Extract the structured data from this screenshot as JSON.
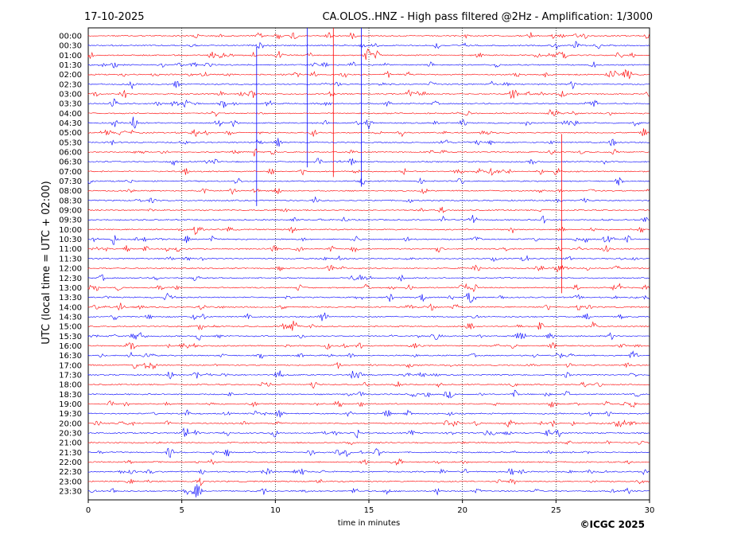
{
  "header": {
    "date": "17-10-2025",
    "station_title": "CA.OLOS..HNZ - High pass filtered @2Hz - Amplification: 1/3000"
  },
  "footer": {
    "copyright": "©ICGC 2025"
  },
  "chart_data": {
    "type": "line",
    "xlabel": "time in minutes",
    "ylabel": "UTC (local time = UTC + 02:00)",
    "xlim": [
      0,
      30
    ],
    "x_ticks": [
      "0",
      "5",
      "10",
      "15",
      "20",
      "25",
      "30"
    ],
    "x_tick_values": [
      0,
      5,
      10,
      15,
      20,
      25,
      30
    ],
    "grid_x": [
      5,
      10,
      15,
      20,
      25
    ],
    "grid": "vertical dotted lines at 5-minute intervals",
    "row_labels": [
      "00:00",
      "00:30",
      "01:00",
      "01:30",
      "02:00",
      "02:30",
      "03:00",
      "03:30",
      "04:00",
      "04:30",
      "05:00",
      "05:30",
      "06:00",
      "06:30",
      "07:00",
      "07:30",
      "08:00",
      "08:30",
      "09:00",
      "09:30",
      "10:00",
      "10:30",
      "11:00",
      "11:30",
      "12:00",
      "12:30",
      "13:00",
      "13:30",
      "14:00",
      "14:30",
      "15:00",
      "15:30",
      "16:00",
      "16:30",
      "17:00",
      "17:30",
      "18:00",
      "18:30",
      "19:00",
      "19:30",
      "20:00",
      "20:30",
      "21:00",
      "21:30",
      "22:00",
      "22:30",
      "23:00",
      "23:30"
    ],
    "trace_colors": [
      "#ff0000",
      "#0000ff"
    ],
    "major_events_minutes": [
      {
        "row": "05:30",
        "minute": 9.0
      },
      {
        "row": "03:30",
        "minute": 11.7
      },
      {
        "row": "04:00",
        "minute": 13.1
      },
      {
        "row": "04:30",
        "minute": 14.6
      },
      {
        "row": "10:00",
        "minute": 25.3
      }
    ]
  }
}
